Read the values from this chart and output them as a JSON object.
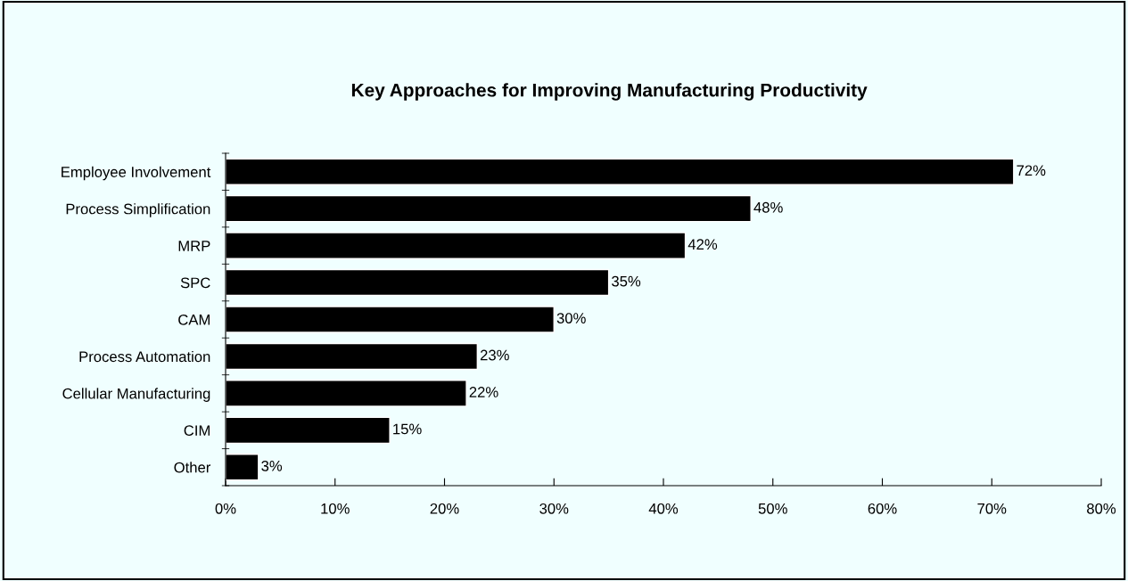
{
  "chart_data": {
    "type": "bar",
    "orientation": "horizontal",
    "title": "Key Approaches for Improving Manufacturing Productivity",
    "categories": [
      "Employee Involvement",
      "Process Simplification",
      "MRP",
      "SPC",
      "CAM",
      "Process Automation",
      "Cellular Manufacturing",
      "CIM",
      "Other"
    ],
    "values": [
      72,
      48,
      42,
      35,
      30,
      23,
      22,
      15,
      3
    ],
    "value_labels": [
      "72%",
      "48%",
      "42%",
      "35%",
      "30%",
      "23%",
      "22%",
      "15%",
      "3%"
    ],
    "color": "#000000",
    "xlim": [
      0,
      80
    ],
    "xticks": [
      {
        "value": 0,
        "label": "0%"
      },
      {
        "value": 10,
        "label": "10%"
      },
      {
        "value": 20,
        "label": "20%"
      },
      {
        "value": 30,
        "label": "30%"
      },
      {
        "value": 40,
        "label": "40%"
      },
      {
        "value": 50,
        "label": "50%"
      },
      {
        "value": 60,
        "label": "60%"
      },
      {
        "value": 70,
        "label": "70%"
      },
      {
        "value": 80,
        "label": "80%"
      }
    ],
    "grid": false
  }
}
